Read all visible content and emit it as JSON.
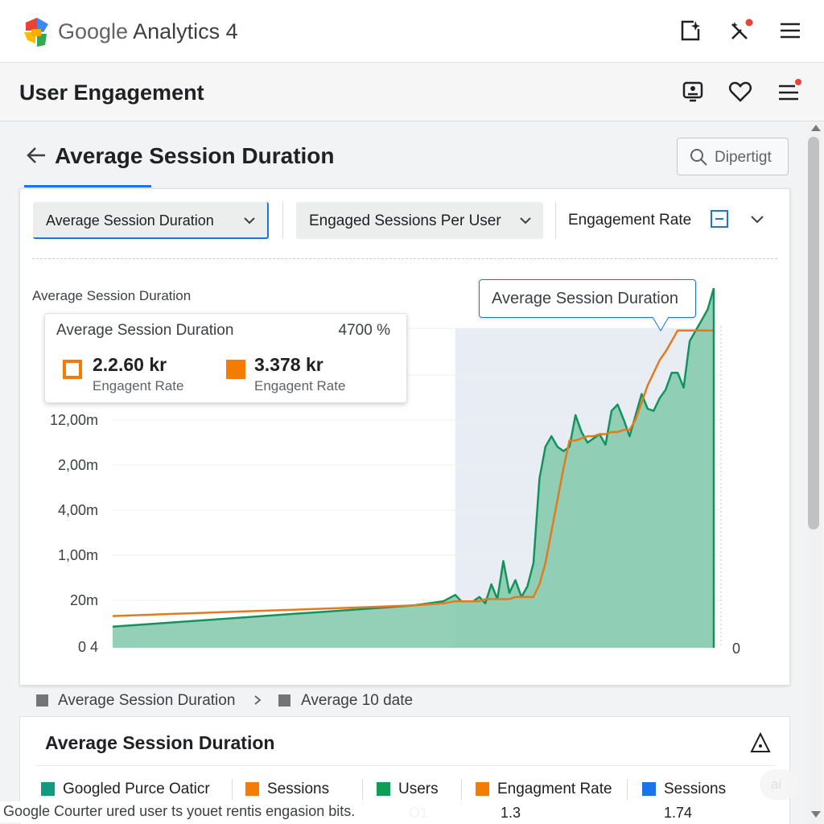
{
  "app": {
    "brand_google": "Google",
    "brand_product": "Analytics 4"
  },
  "topbar": {
    "icons": [
      "open-in-new-icon",
      "magic-tools-icon",
      "menu-icon"
    ]
  },
  "subheader": {
    "title": "User Engagement",
    "icons": [
      "portrait-icon",
      "heart-icon",
      "menu-notification-icon"
    ]
  },
  "page": {
    "title": "Average Session Duration",
    "search_placeholder": "Dipertigt"
  },
  "filters": {
    "metric_1": "Average Session Duration",
    "metric_2": "Engaged Sessions Per User",
    "metric_3": "Engagement Rate"
  },
  "chart_data": {
    "type": "area",
    "title": "Average Session Duration",
    "y_tick_labels": [
      "12,00m",
      "2,00m",
      "4,00m",
      "1,00m",
      "20m",
      "0 4"
    ],
    "right_axis_label": "0",
    "x": [
      0,
      10,
      20,
      30,
      40,
      50,
      55,
      57,
      58,
      60,
      61,
      62,
      63,
      64,
      65,
      66,
      67,
      68,
      69,
      70,
      71,
      72,
      73,
      74,
      75,
      76,
      77,
      78,
      79,
      80,
      81,
      82,
      83,
      84,
      85,
      86,
      87,
      88,
      89,
      90,
      91,
      92,
      93,
      94,
      95,
      96,
      97,
      98,
      99,
      100
    ],
    "series": [
      {
        "color": "#12935c",
        "fill": "#80c8aa",
        "values": [
          10,
          12,
          14,
          16,
          18,
          20,
          22,
          25,
          22,
          22,
          24,
          21,
          30,
          23,
          41,
          26,
          32,
          24,
          29,
          40,
          80,
          95,
          100,
          95,
          93,
          95,
          110,
          102,
          97,
          99,
          101,
          96,
          112,
          115,
          108,
          100,
          110,
          120,
          113,
          112,
          118,
          122,
          130,
          130,
          123,
          145,
          150,
          155,
          160,
          170
        ]
      },
      {
        "color": "#e37a1d",
        "values": [
          15,
          16,
          17,
          18,
          19,
          20,
          21,
          22,
          22,
          22,
          22,
          23,
          23,
          23,
          23,
          23,
          24,
          24,
          24,
          24,
          30,
          40,
          55,
          70,
          85,
          98,
          98,
          99,
          100,
          100,
          101,
          101,
          102,
          102,
          103,
          103,
          108,
          116,
          124,
          130,
          136,
          140,
          145,
          150,
          150,
          150,
          150,
          150,
          150,
          150
        ]
      }
    ],
    "highlight_range": [
      57,
      100
    ]
  },
  "tooltip": {
    "title": "Average Session Duration",
    "percent": "4700 %",
    "value_1": "2.2.60 kr",
    "label_1": "Engagent Rate",
    "value_2": "3.378 kr",
    "label_2": "Engagent Rate"
  },
  "callout": {
    "text": "Average Session Duration"
  },
  "legend": {
    "item_1": "Average Session Duration",
    "item_2": "Average 10 date"
  },
  "summary": {
    "title": "Average Session Duration",
    "metrics": [
      {
        "label": "Googled Purce Oaticr",
        "color": "#129a7f",
        "value": ""
      },
      {
        "label": "Sessions",
        "color": "#f57c00",
        "value": ""
      },
      {
        "label": "Users",
        "color": "#0f9d58",
        "value": "O1"
      },
      {
        "label": "Engagment Rate",
        "color": "#f57c00",
        "value": "1.3"
      },
      {
        "label": "Sessions",
        "color": "#1a73e8",
        "value": "1.74"
      }
    ]
  },
  "snackbar": {
    "text": "Google Courter ured user ts youet rentis engasion bits."
  },
  "fab": {
    "label": "ai"
  }
}
